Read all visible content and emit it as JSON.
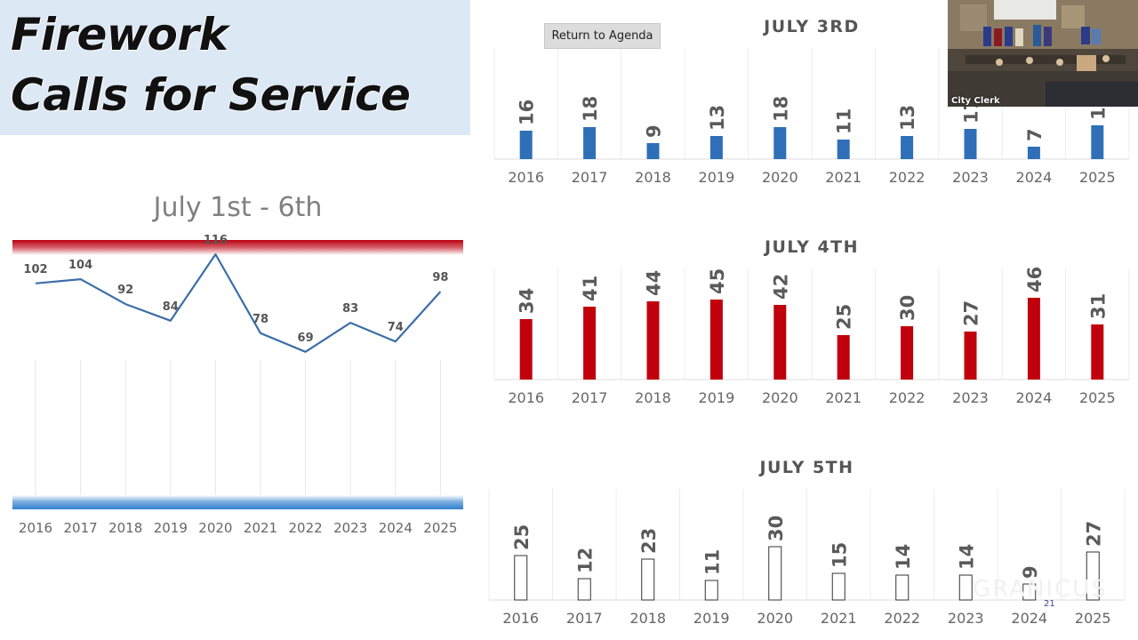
{
  "title": {
    "line1": "Firework",
    "line2": "Calls for Service"
  },
  "video": {
    "label": "City Clerk"
  },
  "return_button": {
    "label": "Return to Agenda"
  },
  "page_number": "21",
  "watermark": "GRANICUS",
  "chart_data": [
    {
      "id": "total",
      "type": "line",
      "title": "July 1st - 6th",
      "categories": [
        "2016",
        "2017",
        "2018",
        "2019",
        "2020",
        "2021",
        "2022",
        "2023",
        "2024",
        "2025"
      ],
      "values": [
        102,
        104,
        92,
        84,
        116,
        78,
        69,
        83,
        74,
        98
      ],
      "ylim": [
        0,
        140
      ],
      "color": "#3c6ea8",
      "grid": "vertical"
    },
    {
      "id": "july3",
      "type": "bar",
      "title": "JULY 3RD",
      "categories": [
        "2016",
        "2017",
        "2018",
        "2019",
        "2020",
        "2021",
        "2022",
        "2023",
        "2024",
        "2025"
      ],
      "values": [
        16,
        18,
        9,
        13,
        18,
        11,
        13,
        17,
        7,
        19
      ],
      "ylim": [
        0,
        46
      ],
      "color": "#2e6fb7",
      "outline": false
    },
    {
      "id": "july4",
      "type": "bar",
      "title": "JULY 4TH",
      "categories": [
        "2016",
        "2017",
        "2018",
        "2019",
        "2020",
        "2021",
        "2022",
        "2023",
        "2024",
        "2025"
      ],
      "values": [
        34,
        41,
        44,
        45,
        42,
        25,
        30,
        27,
        46,
        31
      ],
      "ylim": [
        0,
        46
      ],
      "color": "#c0000c",
      "outline": false
    },
    {
      "id": "july5",
      "type": "bar",
      "title": "JULY 5TH",
      "categories": [
        "2016",
        "2017",
        "2018",
        "2019",
        "2020",
        "2021",
        "2022",
        "2023",
        "2024",
        "2025"
      ],
      "values": [
        25,
        12,
        23,
        11,
        30,
        15,
        14,
        14,
        9,
        27
      ],
      "ylim": [
        0,
        46
      ],
      "color": "#ffffff",
      "outline": true
    }
  ]
}
